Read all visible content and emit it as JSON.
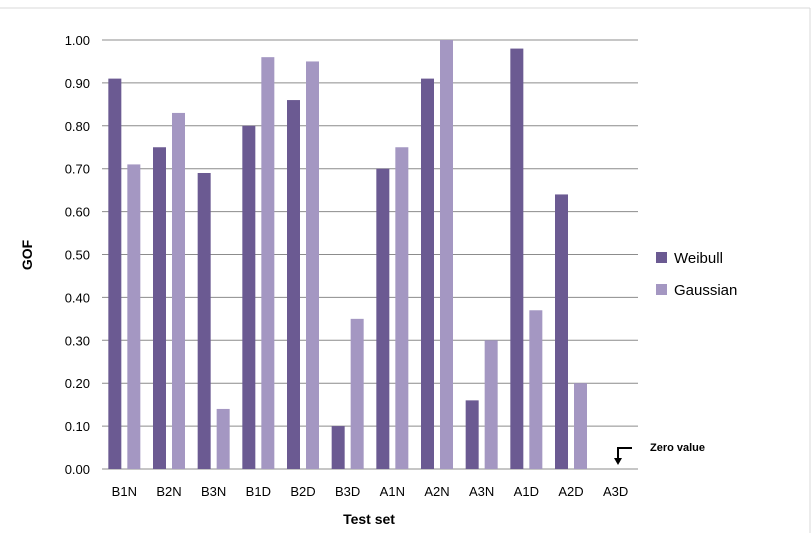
{
  "chart_data": {
    "type": "bar",
    "xlabel": "Test set",
    "ylabel": "GOF",
    "ylim": [
      0,
      1
    ],
    "yticks": [
      "0.00",
      "0.10",
      "0.20",
      "0.30",
      "0.40",
      "0.50",
      "0.60",
      "0.70",
      "0.80",
      "0.90",
      "1.00"
    ],
    "categories": [
      "B1N",
      "B2N",
      "B3N",
      "B1D",
      "B2D",
      "B3D",
      "A1N",
      "A2N",
      "A3N",
      "A1D",
      "A2D",
      "A3D"
    ],
    "series": [
      {
        "name": "Weibull",
        "color": "#6b5a92",
        "values": [
          0.91,
          0.75,
          0.69,
          0.8,
          0.86,
          0.1,
          0.7,
          0.91,
          0.16,
          0.98,
          0.64,
          0.0
        ]
      },
      {
        "name": "Gaussian",
        "color": "#a497c2",
        "values": [
          0.71,
          0.83,
          0.14,
          0.96,
          0.95,
          0.35,
          0.75,
          1.0,
          0.3,
          0.37,
          0.2,
          0.0
        ]
      }
    ],
    "grid": true,
    "legend_position": "right",
    "annotation": {
      "text": "Zero value",
      "category": "A3D"
    }
  },
  "colors": {
    "gridline": "#8c8c8c",
    "frame": "#d9d9d9"
  }
}
